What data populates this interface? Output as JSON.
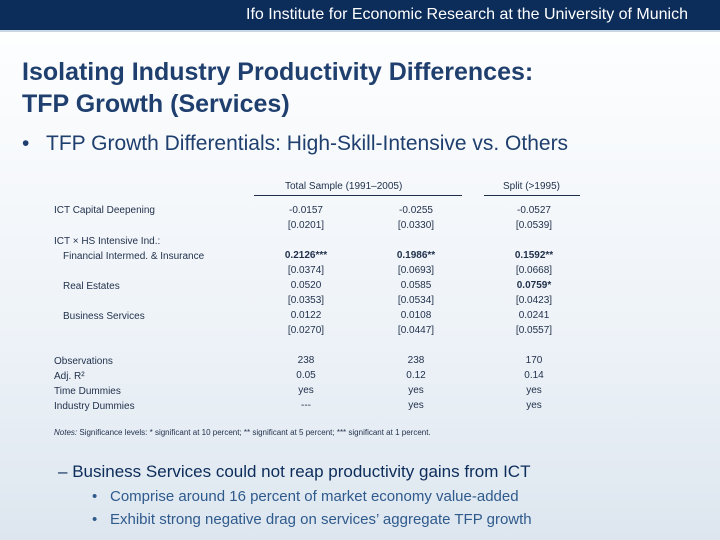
{
  "header": {
    "text": "Ifo Institute for Economic Research at the University of Munich"
  },
  "title": {
    "line1": "Isolating Industry Productivity Differences:",
    "line2": "TFP Growth (Services)"
  },
  "bullet": {
    "marker": "•",
    "text": "TFP Growth Differentials: High-Skill-Intensive vs. Others"
  },
  "table": {
    "header_total": "Total Sample (1991–2005)",
    "header_split": "Split (>1995)",
    "row_labels": {
      "ict_capital": "ICT Capital Deepening",
      "ict_interaction": "ICT × HS Intensive Ind.:",
      "financial": "Financial Intermed. & Insurance",
      "real_estate": "Real Estates",
      "business": "Business Services",
      "observations": "Observations",
      "adj_r2": "Adj. R²",
      "time_dummies": "Time Dummies",
      "industry_dummies": "Industry Dummies"
    },
    "col1": {
      "ict": "-0.0157",
      "ict_se": "[0.0201]",
      "fin": "0.2126***",
      "fin_se": "[0.0374]",
      "re": "0.0520",
      "re_se": "[0.0353]",
      "bs": "0.0122",
      "bs_se": "[0.0270]",
      "obs": "238",
      "r2": "0.05",
      "time": "yes",
      "ind": "---"
    },
    "col2": {
      "ict": "-0.0255",
      "ict_se": "[0.0330]",
      "fin": "0.1986**",
      "fin_se": "[0.0693]",
      "re": "0.0585",
      "re_se": "[0.0534]",
      "bs": "0.0108",
      "bs_se": "[0.0447]",
      "obs": "238",
      "r2": "0.12",
      "time": "yes",
      "ind": "yes"
    },
    "col3": {
      "ict": "-0.0527",
      "ict_se": "[0.0539]",
      "fin": "0.1592**",
      "fin_se": "[0.0668]",
      "re": "0.0759*",
      "re_se": "[0.0423]",
      "bs": "0.0241",
      "bs_se": "[0.0557]",
      "obs": "170",
      "r2": "0.14",
      "time": "yes",
      "ind": "yes"
    }
  },
  "notes": {
    "label": "Notes:",
    "text": " Significance levels: * significant at 10 percent; ** significant at 5 percent; *** significant at 1 percent."
  },
  "sub_bullet": {
    "marker": "–",
    "text": "Business Services could not reap productivity gains from ICT"
  },
  "sub_sub_bullets": [
    {
      "marker": "•",
      "text": "Comprise around 16 percent of market economy value-added"
    },
    {
      "marker": "•",
      "text": "Exhibit strong negative drag on services’ aggregate TFP growth"
    }
  ]
}
